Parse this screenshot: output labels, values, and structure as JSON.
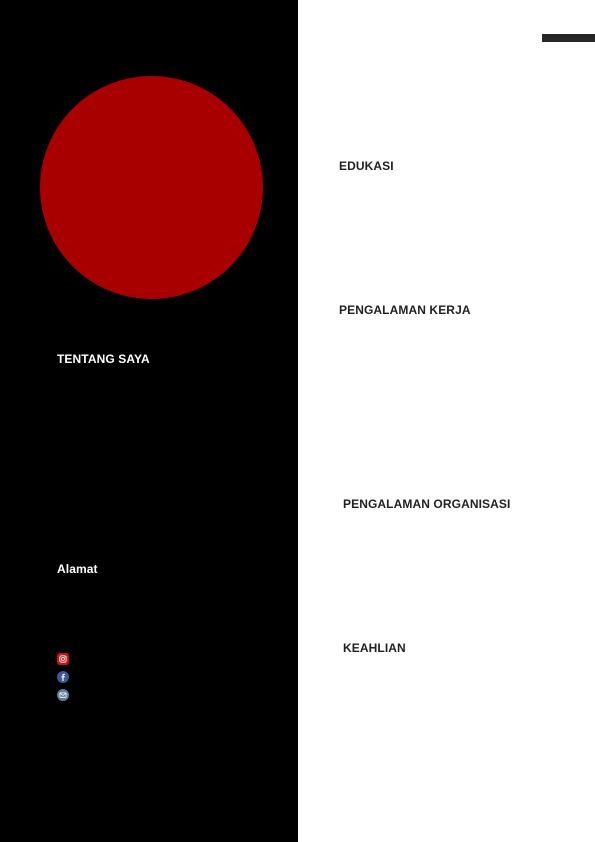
{
  "sidebar": {
    "background_color": "#000000",
    "photo_color": "#a80000",
    "about_heading": "TENTANG SAYA",
    "address_heading": "Alamat",
    "contact_icons": [
      {
        "icon": "instagram-icon",
        "color": "#d31010"
      },
      {
        "icon": "facebook-icon",
        "color": "#3b5998"
      },
      {
        "icon": "email-icon",
        "color": "#5b7f9b"
      }
    ]
  },
  "main": {
    "accent_bar_color": "#262626",
    "sections": {
      "education": "EDUKASI",
      "work_experience": "PENGALAMAN KERJA",
      "organization_experience": "PENGALAMAN ORGANISASI",
      "skills": "KEAHLIAN"
    }
  }
}
